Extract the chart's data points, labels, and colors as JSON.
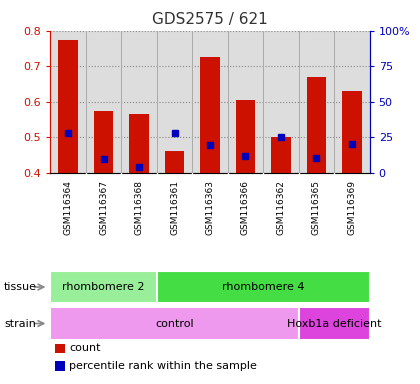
{
  "title": "GDS2575 / 621",
  "samples": [
    "GSM116364",
    "GSM116367",
    "GSM116368",
    "GSM116361",
    "GSM116363",
    "GSM116366",
    "GSM116362",
    "GSM116365",
    "GSM116369"
  ],
  "bar_values": [
    0.775,
    0.575,
    0.565,
    0.462,
    0.725,
    0.605,
    0.502,
    0.67,
    0.63
  ],
  "percentile_values": [
    0.513,
    0.44,
    0.415,
    0.513,
    0.478,
    0.448,
    0.502,
    0.442,
    0.48
  ],
  "bar_bottom": 0.4,
  "ylim": [
    0.4,
    0.8
  ],
  "yticks": [
    0.4,
    0.5,
    0.6,
    0.7,
    0.8
  ],
  "right_yticks": [
    0,
    25,
    50,
    75,
    100
  ],
  "right_ylabels": [
    "0",
    "25",
    "50",
    "75",
    "100%"
  ],
  "bar_color": "#cc1100",
  "percentile_color": "#0000bb",
  "tissue_groups": [
    {
      "label": "rhombomere 2",
      "start": 0,
      "end": 3,
      "color": "#99ee99"
    },
    {
      "label": "rhombomere 4",
      "start": 3,
      "end": 9,
      "color": "#44dd44"
    }
  ],
  "strain_groups": [
    {
      "label": "control",
      "start": 0,
      "end": 7,
      "color": "#ee99ee"
    },
    {
      "label": "Hoxb1a deficient",
      "start": 7,
      "end": 9,
      "color": "#dd44dd"
    }
  ],
  "bg_color": "#ffffff",
  "plot_bg_color": "#dddddd",
  "tick_bg_color": "#cccccc",
  "title_color": "#333333",
  "left_axis_color": "#cc1100",
  "right_axis_color": "#0000bb",
  "grid_color": "#888888",
  "sep_color": "#aaaaaa"
}
